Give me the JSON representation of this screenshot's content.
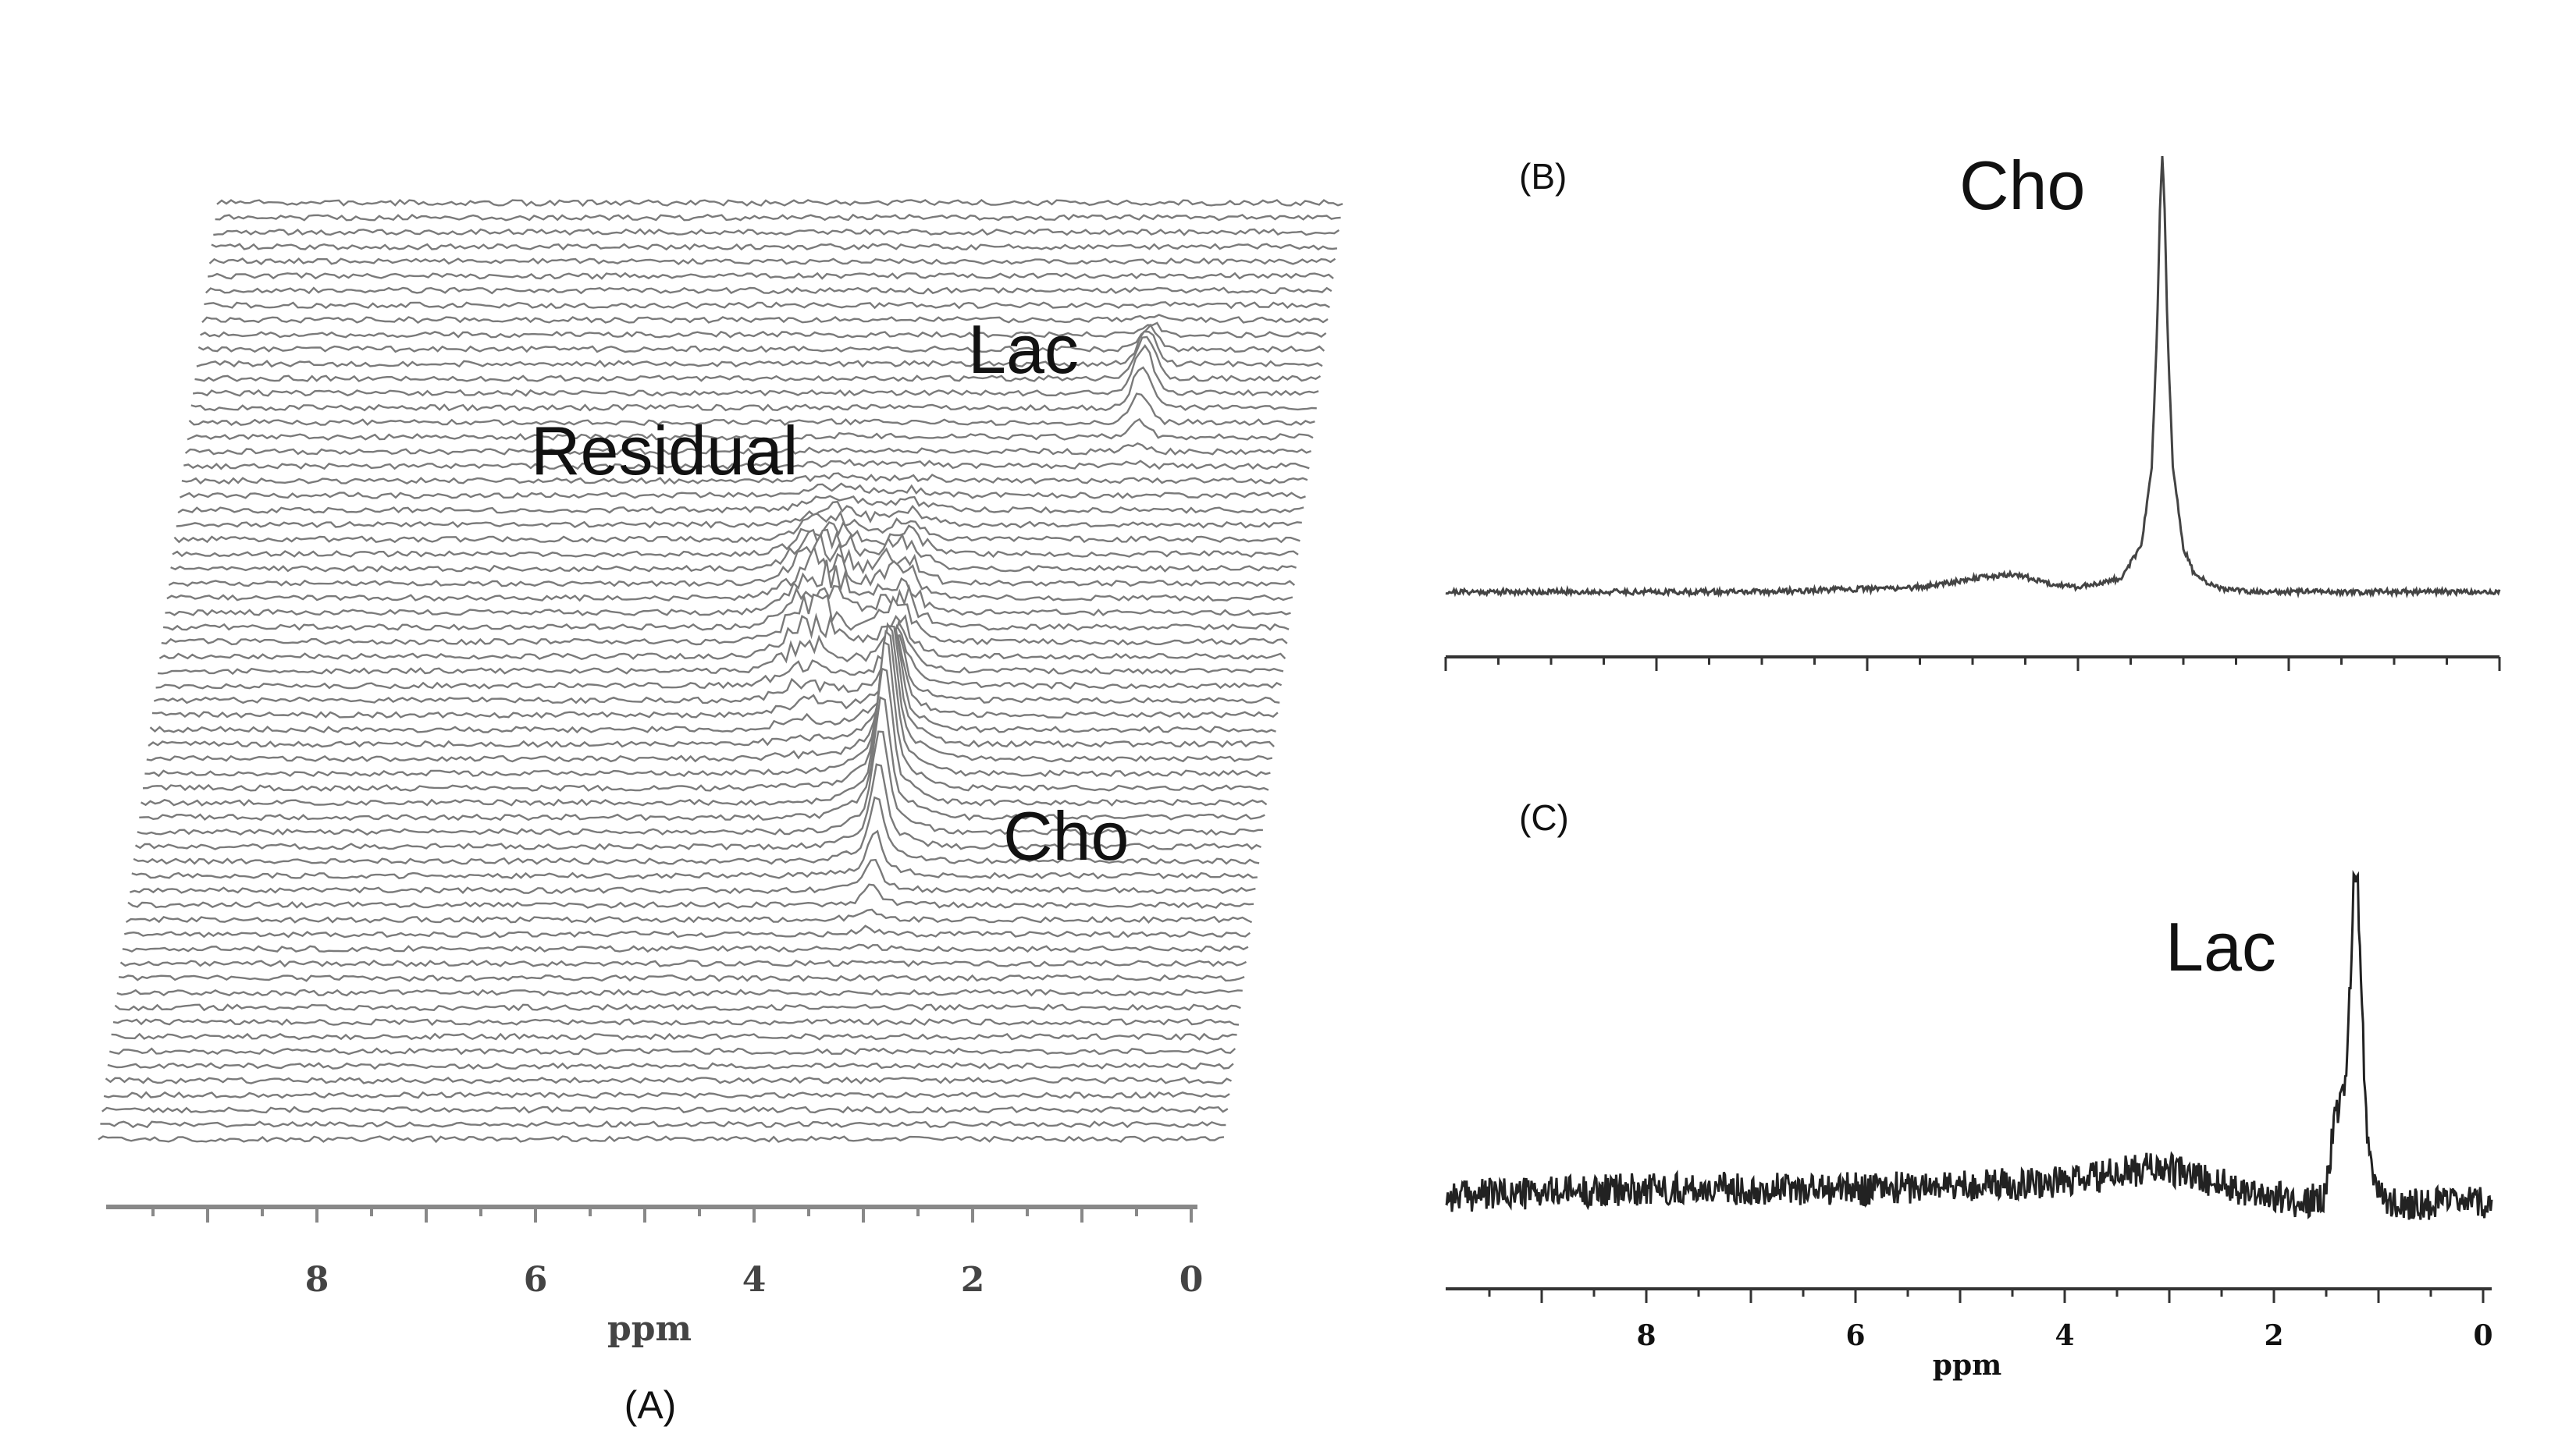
{
  "chart_data": [
    {
      "type": "line",
      "panel_label": "(A)",
      "xlabel": "ppm",
      "xlim": [
        0,
        10
      ],
      "x_reversed": true,
      "x_ticks": [
        8,
        6,
        4,
        2,
        0
      ],
      "x_tick_labels": [
        "8",
        "6",
        "4",
        "2",
        "0"
      ],
      "stacked_spectra_count": 65,
      "annotations": [
        "Lac",
        "Residual",
        "Cho"
      ],
      "peaks": [
        {
          "name": "Cho",
          "ppm": 3.2
        },
        {
          "name": "Lac",
          "ppm": 1.3
        },
        {
          "name": "Residual",
          "ppm": 4.0
        }
      ],
      "line_color": "#7a7a7a"
    },
    {
      "type": "line",
      "panel_label": "(B)",
      "xlim": [
        0,
        10
      ],
      "x_reversed": true,
      "annotations": [
        "Cho"
      ],
      "series": [
        {
          "x": [
            10,
            7,
            5.5,
            5,
            4.6,
            4.3,
            4.0,
            3.6,
            3.4,
            3.3,
            3.25,
            3.22,
            3.2,
            3.18,
            3.15,
            3.1,
            3.0,
            2.9,
            2.7,
            2.4,
            2.0,
            1.0,
            0
          ],
          "y": [
            0.02,
            0.02,
            0.03,
            0.05,
            0.06,
            0.04,
            0.03,
            0.05,
            0.12,
            0.3,
            0.6,
            0.9,
            1.0,
            0.9,
            0.6,
            0.3,
            0.12,
            0.06,
            0.03,
            0.02,
            0.02,
            0.02,
            0.02
          ]
        }
      ],
      "line_color": "#444444"
    },
    {
      "type": "line",
      "panel_label": "(C)",
      "xlabel": "ppm",
      "xlim": [
        0,
        10
      ],
      "x_reversed": true,
      "x_ticks": [
        8,
        6,
        4,
        2,
        0
      ],
      "x_tick_labels": [
        "8",
        "6",
        "4",
        "2",
        "0"
      ],
      "annotations": [
        "Lac"
      ],
      "series": [
        {
          "x": [
            10,
            8,
            6,
            4,
            3.2,
            2.4,
            1.8,
            1.6,
            1.5,
            1.4,
            1.35,
            1.32,
            1.3,
            1.28,
            1.25,
            1.2,
            1.1,
            1.0,
            0.5,
            0
          ],
          "y": [
            0.1,
            0.12,
            0.12,
            0.14,
            0.18,
            0.12,
            0.08,
            0.1,
            0.3,
            0.4,
            0.7,
            0.95,
            1.0,
            0.95,
            0.7,
            0.3,
            0.12,
            0.08,
            0.08,
            0.08
          ]
        }
      ],
      "line_color": "#222222"
    }
  ]
}
